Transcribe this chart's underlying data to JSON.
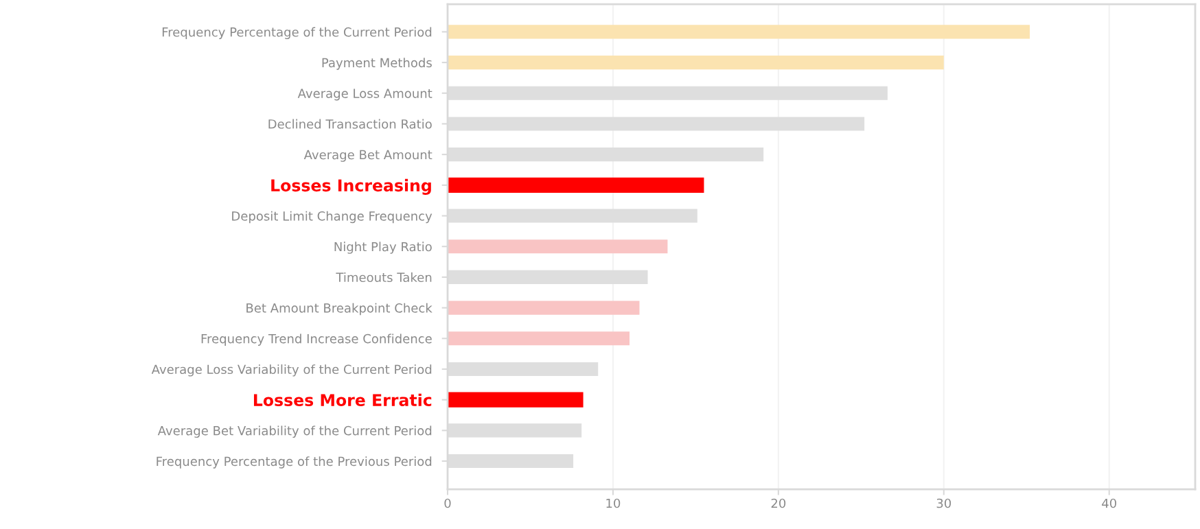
{
  "chart_data": {
    "type": "bar",
    "orientation": "horizontal",
    "categories": [
      "Frequency Percentage of the Current Period",
      "Payment Methods",
      "Average Loss Amount",
      "Declined Transaction Ratio",
      "Average Bet Amount",
      "Losses Increasing",
      "Deposit Limit Change Frequency",
      "Night Play Ratio",
      "Timeouts Taken",
      "Bet Amount Breakpoint Check",
      "Frequency Trend Increase Confidence",
      "Average Loss Variability of the Current Period",
      "Losses More Erratic",
      "Average Bet Variability of the Current Period",
      "Frequency Percentage of the Previous Period"
    ],
    "values": [
      35.2,
      30.0,
      26.6,
      25.2,
      19.1,
      15.5,
      15.1,
      13.3,
      12.1,
      11.6,
      11.0,
      9.1,
      8.2,
      8.1,
      7.6
    ],
    "colors": [
      "#fbe3b0",
      "#fbe3b0",
      "#dedede",
      "#dedede",
      "#dedede",
      "#ff0000",
      "#dedede",
      "#f9c4c4",
      "#dedede",
      "#f9c4c4",
      "#f9c4c4",
      "#dedede",
      "#ff0000",
      "#dedede",
      "#dedede"
    ],
    "xlim": [
      0,
      45.2
    ],
    "xticks": [
      0,
      10,
      20,
      30,
      40
    ],
    "grid": "x"
  }
}
